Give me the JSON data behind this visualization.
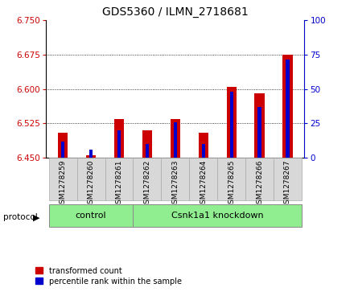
{
  "title": "GDS5360 / ILMN_2718681",
  "samples": [
    "GSM1278259",
    "GSM1278260",
    "GSM1278261",
    "GSM1278262",
    "GSM1278263",
    "GSM1278264",
    "GSM1278265",
    "GSM1278266",
    "GSM1278267"
  ],
  "red_values": [
    6.505,
    6.455,
    6.535,
    6.51,
    6.535,
    6.505,
    6.605,
    6.59,
    6.675
  ],
  "blue_values": [
    6.485,
    6.468,
    6.51,
    6.48,
    6.527,
    6.48,
    6.595,
    6.56,
    6.665
  ],
  "base_value": 6.45,
  "ylim_left": [
    6.45,
    6.75
  ],
  "ylim_right": [
    0,
    100
  ],
  "yticks_left": [
    6.45,
    6.525,
    6.6,
    6.675,
    6.75
  ],
  "yticks_right": [
    0,
    25,
    50,
    75,
    100
  ],
  "left_tick_color": "#cc0000",
  "right_tick_color": "#0000cc",
  "control_count": 3,
  "knockdown_count": 6,
  "control_label": "control",
  "knockdown_label": "Csnk1a1 knockdown",
  "group_color": "#90ee90",
  "red_bar_width": 0.35,
  "blue_bar_width": 0.12,
  "red_color": "#cc0000",
  "blue_color": "#0000cc",
  "legend_red": "transformed count",
  "legend_blue": "percentile rank within the sample",
  "protocol_label": "protocol",
  "cell_color": "#d8d8d8",
  "cell_edge_color": "#aaaaaa"
}
